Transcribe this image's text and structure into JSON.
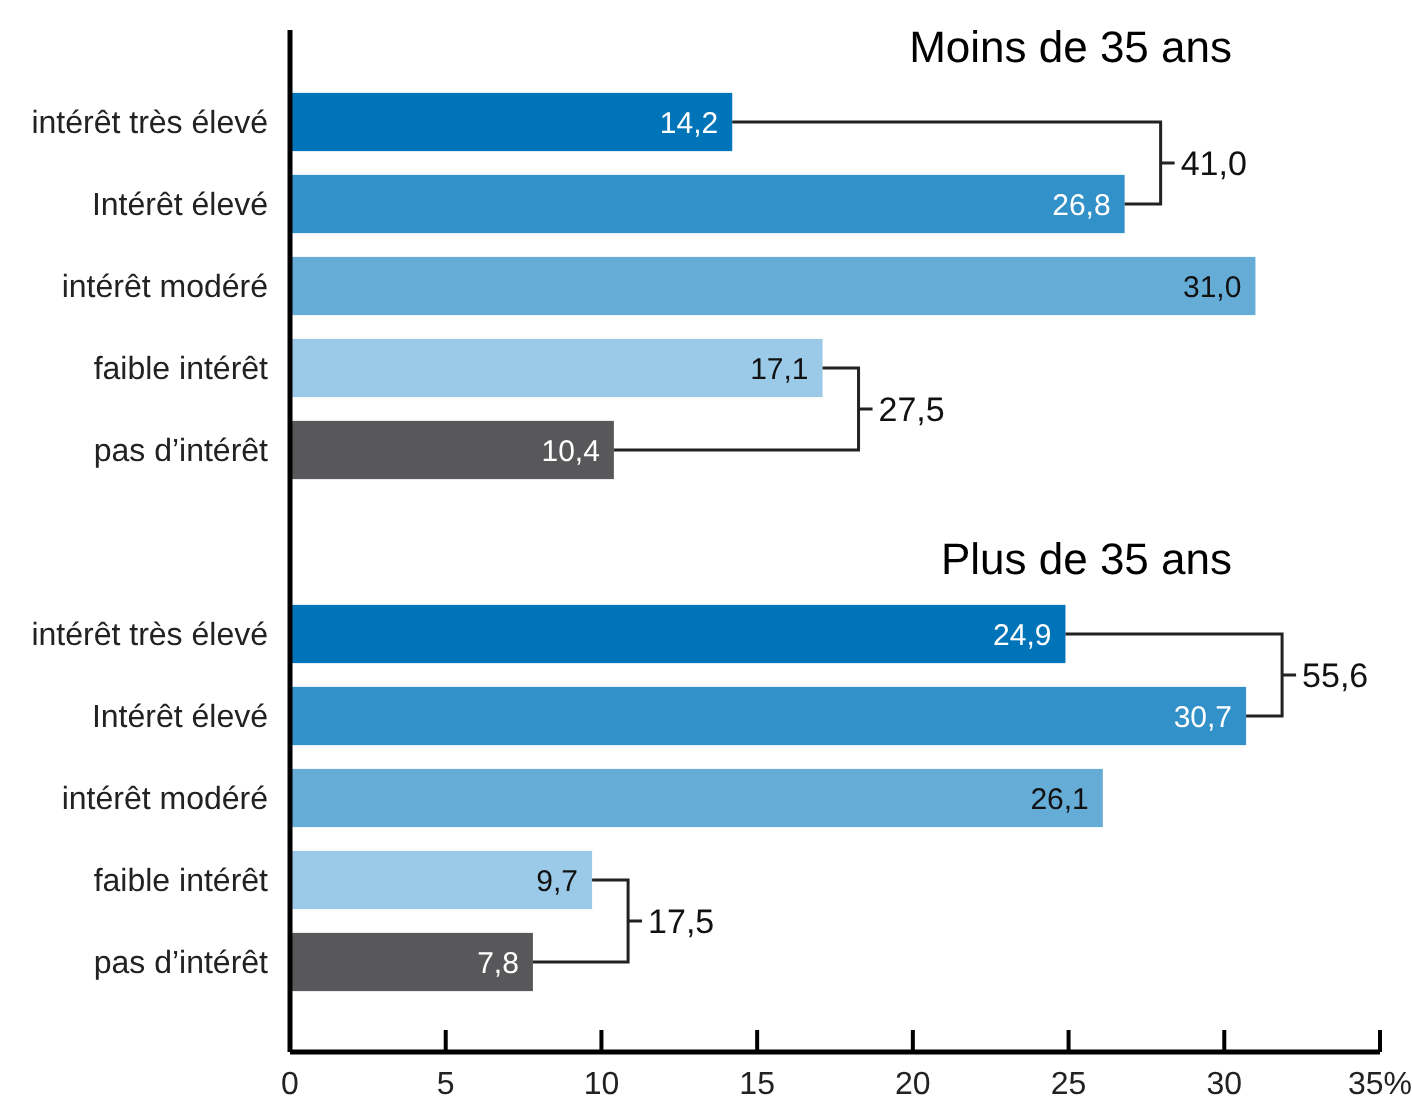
{
  "chart_data": [
    {
      "type": "bar",
      "orientation": "horizontal",
      "title": "Moins de 35 ans",
      "categories": [
        "intérêt très élevé",
        "Intérêt élevé",
        "intérêt modéré",
        "faible intérêt",
        "pas d’intérêt"
      ],
      "values": [
        14.2,
        26.8,
        31.0,
        17.1,
        10.4
      ],
      "colors": [
        "#0074b8",
        "#3391ca",
        "#65acd6",
        "#9acae7",
        "#58585a"
      ],
      "value_labels": [
        "14,2",
        "26,8",
        "31,0",
        "17,1",
        "10,4"
      ],
      "annotations": [
        "41,0",
        "27,5"
      ],
      "xlim": [
        0,
        35
      ],
      "tick_labels": "y"
    },
    {
      "type": "bar",
      "orientation": "horizontal",
      "title": "Plus de 35 ans",
      "categories": [
        "intérêt très élevé",
        "Intérêt élevé",
        "intérêt modéré",
        "faible intérêt",
        "pas d’intérêt"
      ],
      "values": [
        24.9,
        30.7,
        26.1,
        9.7,
        7.8
      ],
      "colors": [
        "#0074b8",
        "#3391ca",
        "#65acd6",
        "#9acae7",
        "#58585a"
      ],
      "value_labels": [
        "24,9",
        "30,7",
        "26,1",
        "9,7",
        "7,8"
      ],
      "annotations": [
        "55,6",
        "17,5"
      ],
      "xlim": [
        0,
        35
      ],
      "xticks": [
        0,
        5,
        10,
        15,
        20,
        25,
        30,
        {
          "value": 35,
          "label": "35%"
        }
      ]
    }
  ]
}
